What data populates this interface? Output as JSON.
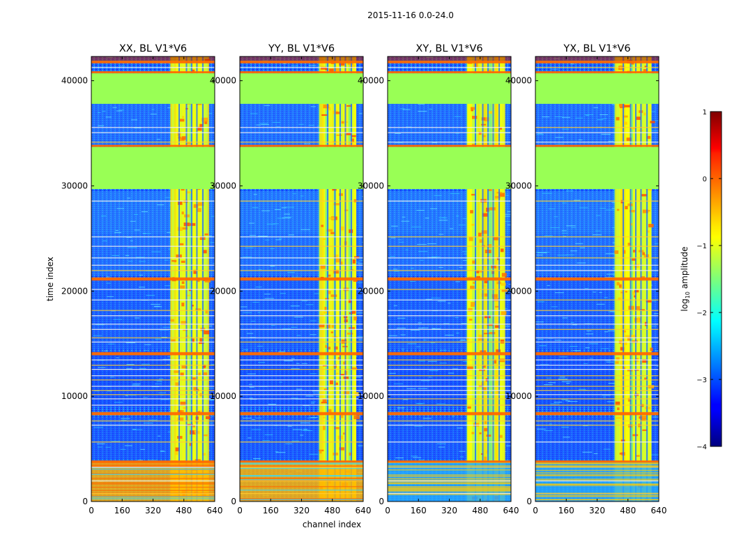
{
  "chart_data": {
    "type": "heatmap",
    "suptitle": "2015-11-16 0.0-24.0",
    "xlabel": "channel index",
    "ylabel": "time index",
    "xlim": [
      0,
      640
    ],
    "ylim": [
      0,
      42300
    ],
    "xticks": [
      0,
      160,
      320,
      480,
      640
    ],
    "xtick_labels": [
      "0",
      "160",
      "320",
      "480",
      "640"
    ],
    "yticks": [
      0,
      10000,
      20000,
      30000,
      40000
    ],
    "ytick_labels": [
      "0",
      "10000",
      "20000",
      "30000",
      "40000"
    ],
    "colorbar": {
      "label_base": "log",
      "label_sub": "10",
      "label_rest": " amplitude",
      "range": [
        -4,
        1
      ],
      "ticks": [
        1,
        0,
        -1,
        -2,
        -3,
        -4
      ],
      "tick_labels": [
        "1",
        "0",
        "−1",
        "−2",
        "−3",
        "−4"
      ],
      "colormap": "jet",
      "masked_color": "#99ff55"
    },
    "flagged_time_ranges": [
      [
        29700,
        33700
      ],
      [
        37800,
        40700
      ]
    ],
    "panels": [
      {
        "title": "XX, BL V1*V6",
        "pol": "XX"
      },
      {
        "title": "YY, BL V1*V6",
        "pol": "YY"
      },
      {
        "title": "XY, BL V1*V6",
        "pol": "XY"
      },
      {
        "title": "YX, BL V1*V6",
        "pol": "YX"
      }
    ]
  }
}
